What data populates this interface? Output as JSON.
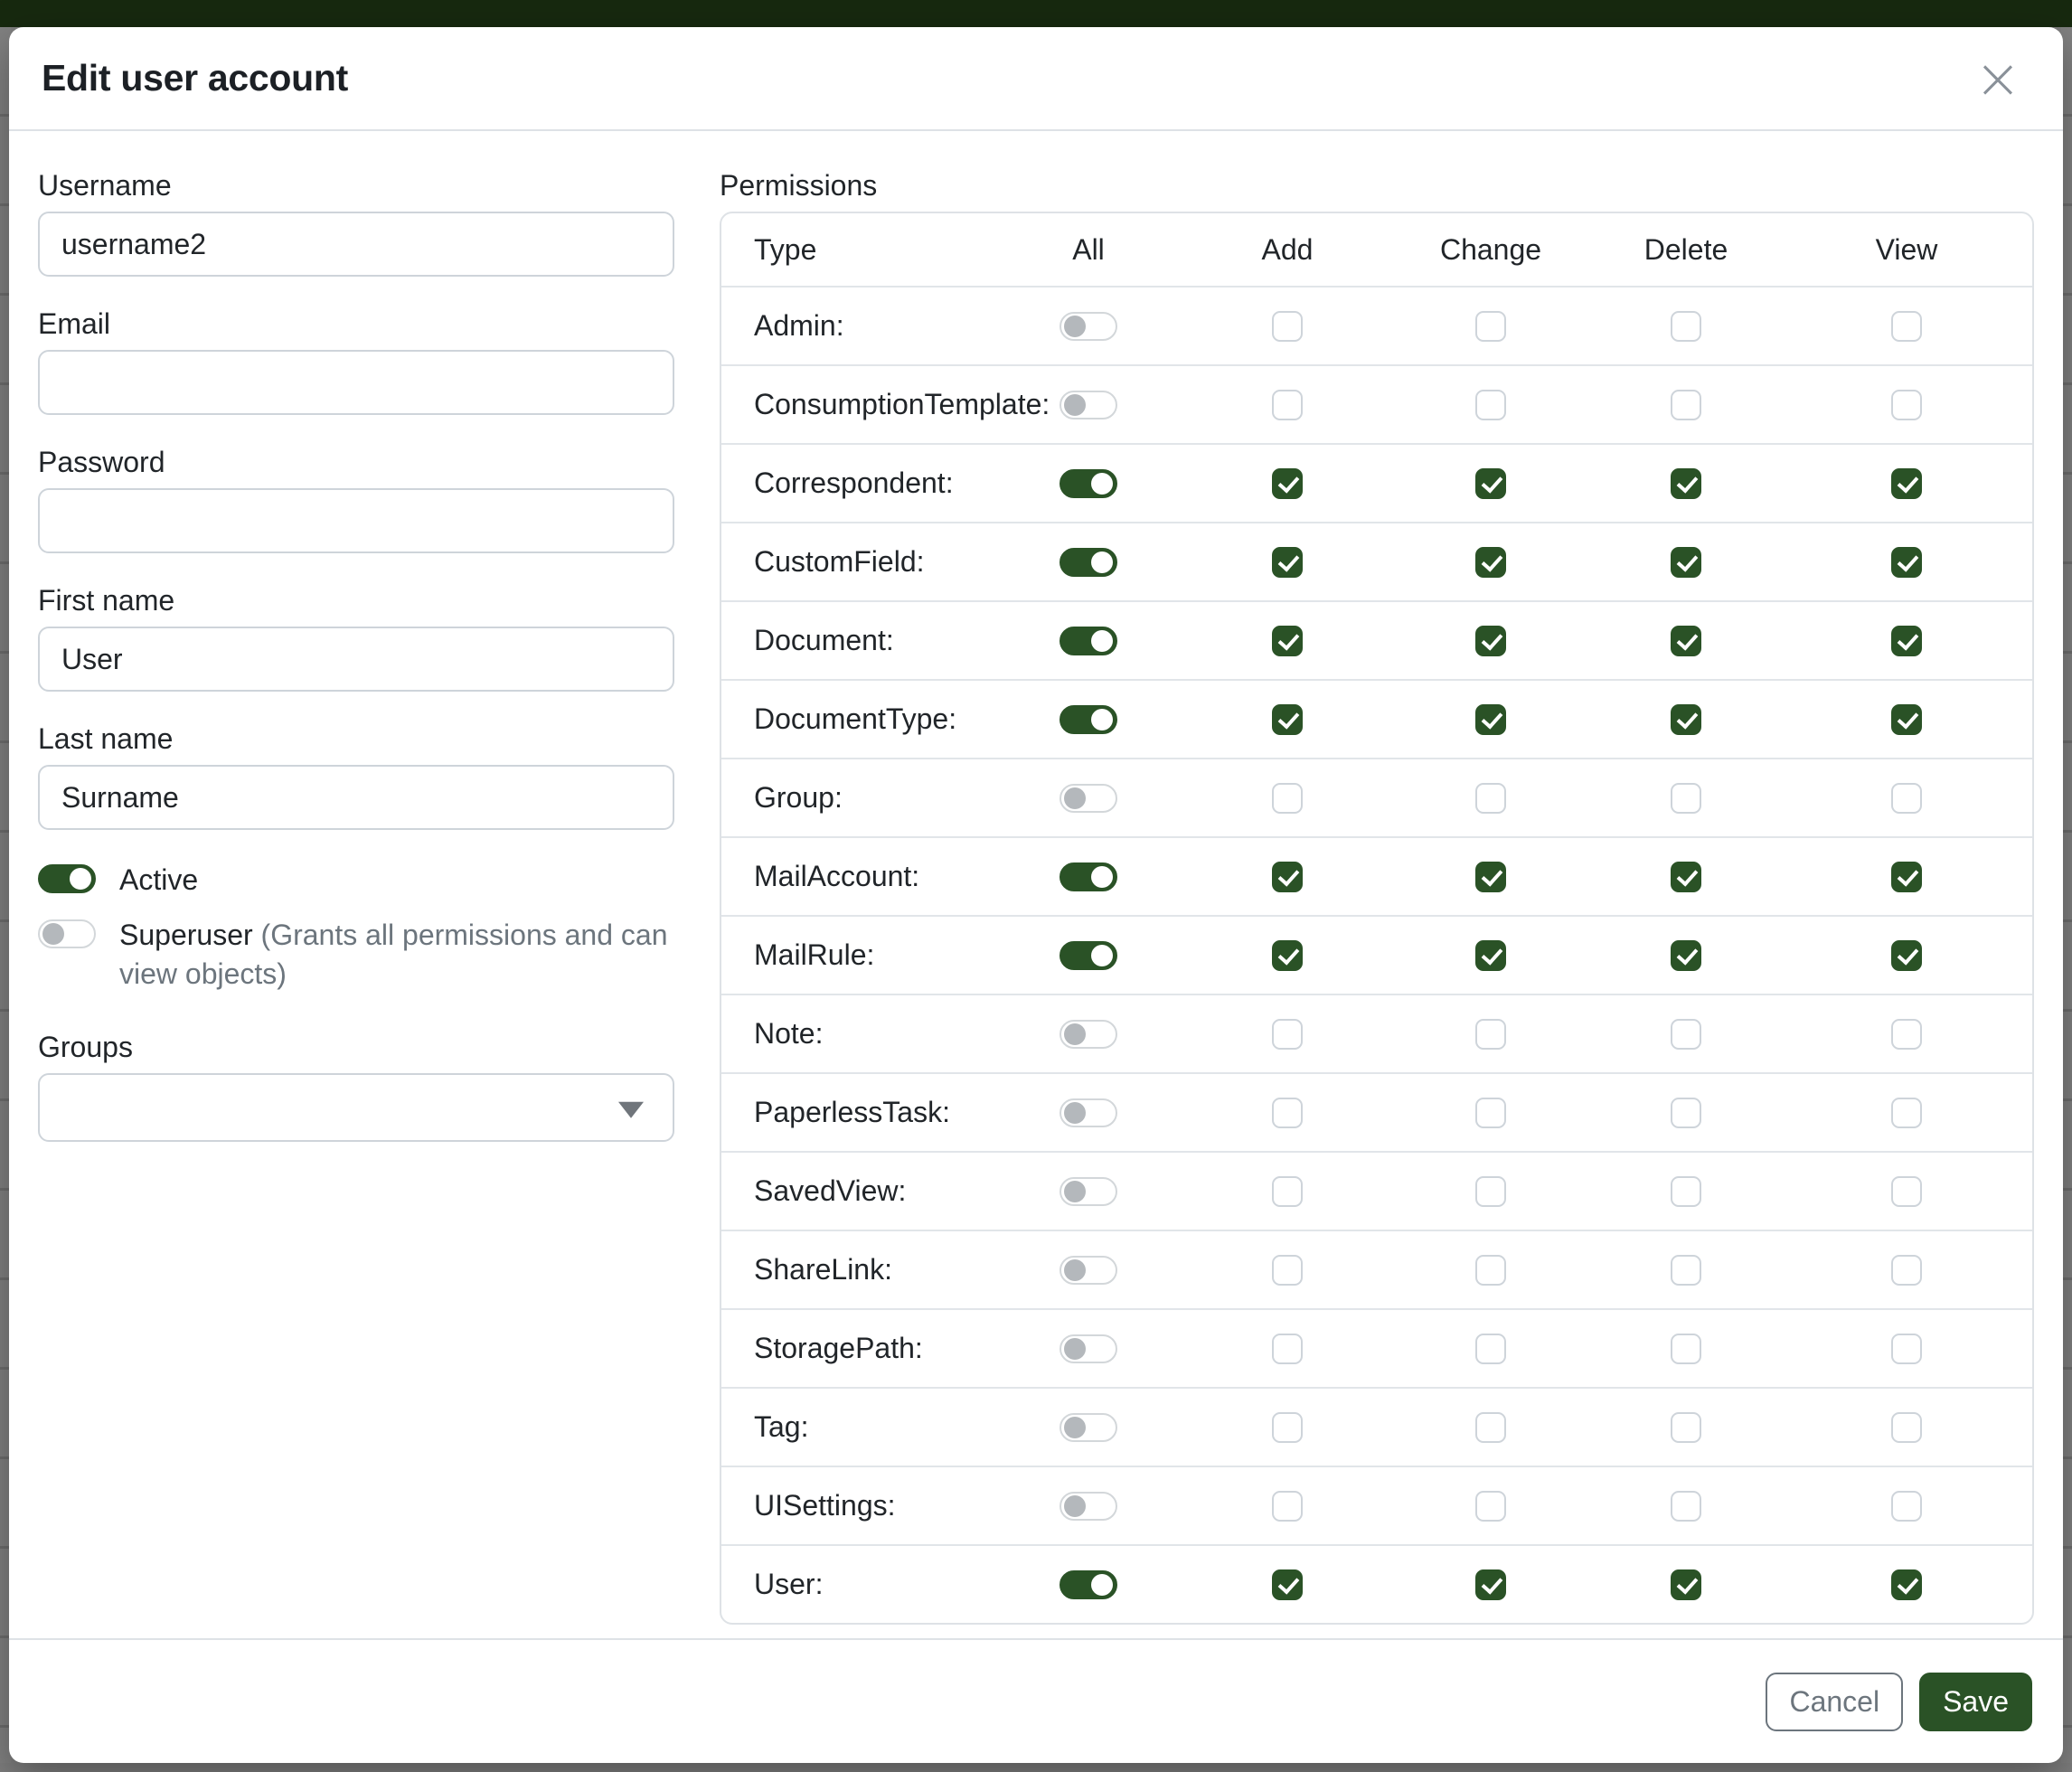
{
  "modal": {
    "title": "Edit user account",
    "close_glyph": "×"
  },
  "form": {
    "username": {
      "label": "Username",
      "value": "username2"
    },
    "email": {
      "label": "Email",
      "value": ""
    },
    "password": {
      "label": "Password",
      "value": ""
    },
    "first_name": {
      "label": "First name",
      "value": "User"
    },
    "last_name": {
      "label": "Last name",
      "value": "Surname"
    },
    "active": {
      "label": "Active",
      "enabled": true
    },
    "superuser": {
      "label": "Superuser",
      "hint": "(Grants all permissions and can view objects)",
      "enabled": false
    },
    "groups": {
      "label": "Groups",
      "value": ""
    }
  },
  "permissions": {
    "label": "Permissions",
    "columns": [
      "Type",
      "All",
      "Add",
      "Change",
      "Delete",
      "View"
    ],
    "rows": [
      {
        "type": "Admin:",
        "all": false,
        "add": false,
        "change": false,
        "delete": false,
        "view": false
      },
      {
        "type": "ConsumptionTemplate:",
        "all": false,
        "add": false,
        "change": false,
        "delete": false,
        "view": false
      },
      {
        "type": "Correspondent:",
        "all": true,
        "add": true,
        "change": true,
        "delete": true,
        "view": true
      },
      {
        "type": "CustomField:",
        "all": true,
        "add": true,
        "change": true,
        "delete": true,
        "view": true
      },
      {
        "type": "Document:",
        "all": true,
        "add": true,
        "change": true,
        "delete": true,
        "view": true
      },
      {
        "type": "DocumentType:",
        "all": true,
        "add": true,
        "change": true,
        "delete": true,
        "view": true
      },
      {
        "type": "Group:",
        "all": false,
        "add": false,
        "change": false,
        "delete": false,
        "view": false
      },
      {
        "type": "MailAccount:",
        "all": true,
        "add": true,
        "change": true,
        "delete": true,
        "view": true
      },
      {
        "type": "MailRule:",
        "all": true,
        "add": true,
        "change": true,
        "delete": true,
        "view": true
      },
      {
        "type": "Note:",
        "all": false,
        "add": false,
        "change": false,
        "delete": false,
        "view": false
      },
      {
        "type": "PaperlessTask:",
        "all": false,
        "add": false,
        "change": false,
        "delete": false,
        "view": false
      },
      {
        "type": "SavedView:",
        "all": false,
        "add": false,
        "change": false,
        "delete": false,
        "view": false
      },
      {
        "type": "ShareLink:",
        "all": false,
        "add": false,
        "change": false,
        "delete": false,
        "view": false
      },
      {
        "type": "StoragePath:",
        "all": false,
        "add": false,
        "change": false,
        "delete": false,
        "view": false
      },
      {
        "type": "Tag:",
        "all": false,
        "add": false,
        "change": false,
        "delete": false,
        "view": false
      },
      {
        "type": "UISettings:",
        "all": false,
        "add": false,
        "change": false,
        "delete": false,
        "view": false
      },
      {
        "type": "User:",
        "all": true,
        "add": true,
        "change": true,
        "delete": true,
        "view": true
      }
    ]
  },
  "footer": {
    "cancel_label": "Cancel",
    "save_label": "Save"
  },
  "colors": {
    "primary_green": "#2a5226",
    "navbar_green": "#17290f",
    "backdrop_gray": "#7f7f7f",
    "border_gray": "#dee2e6",
    "muted_text": "#6c757d"
  }
}
